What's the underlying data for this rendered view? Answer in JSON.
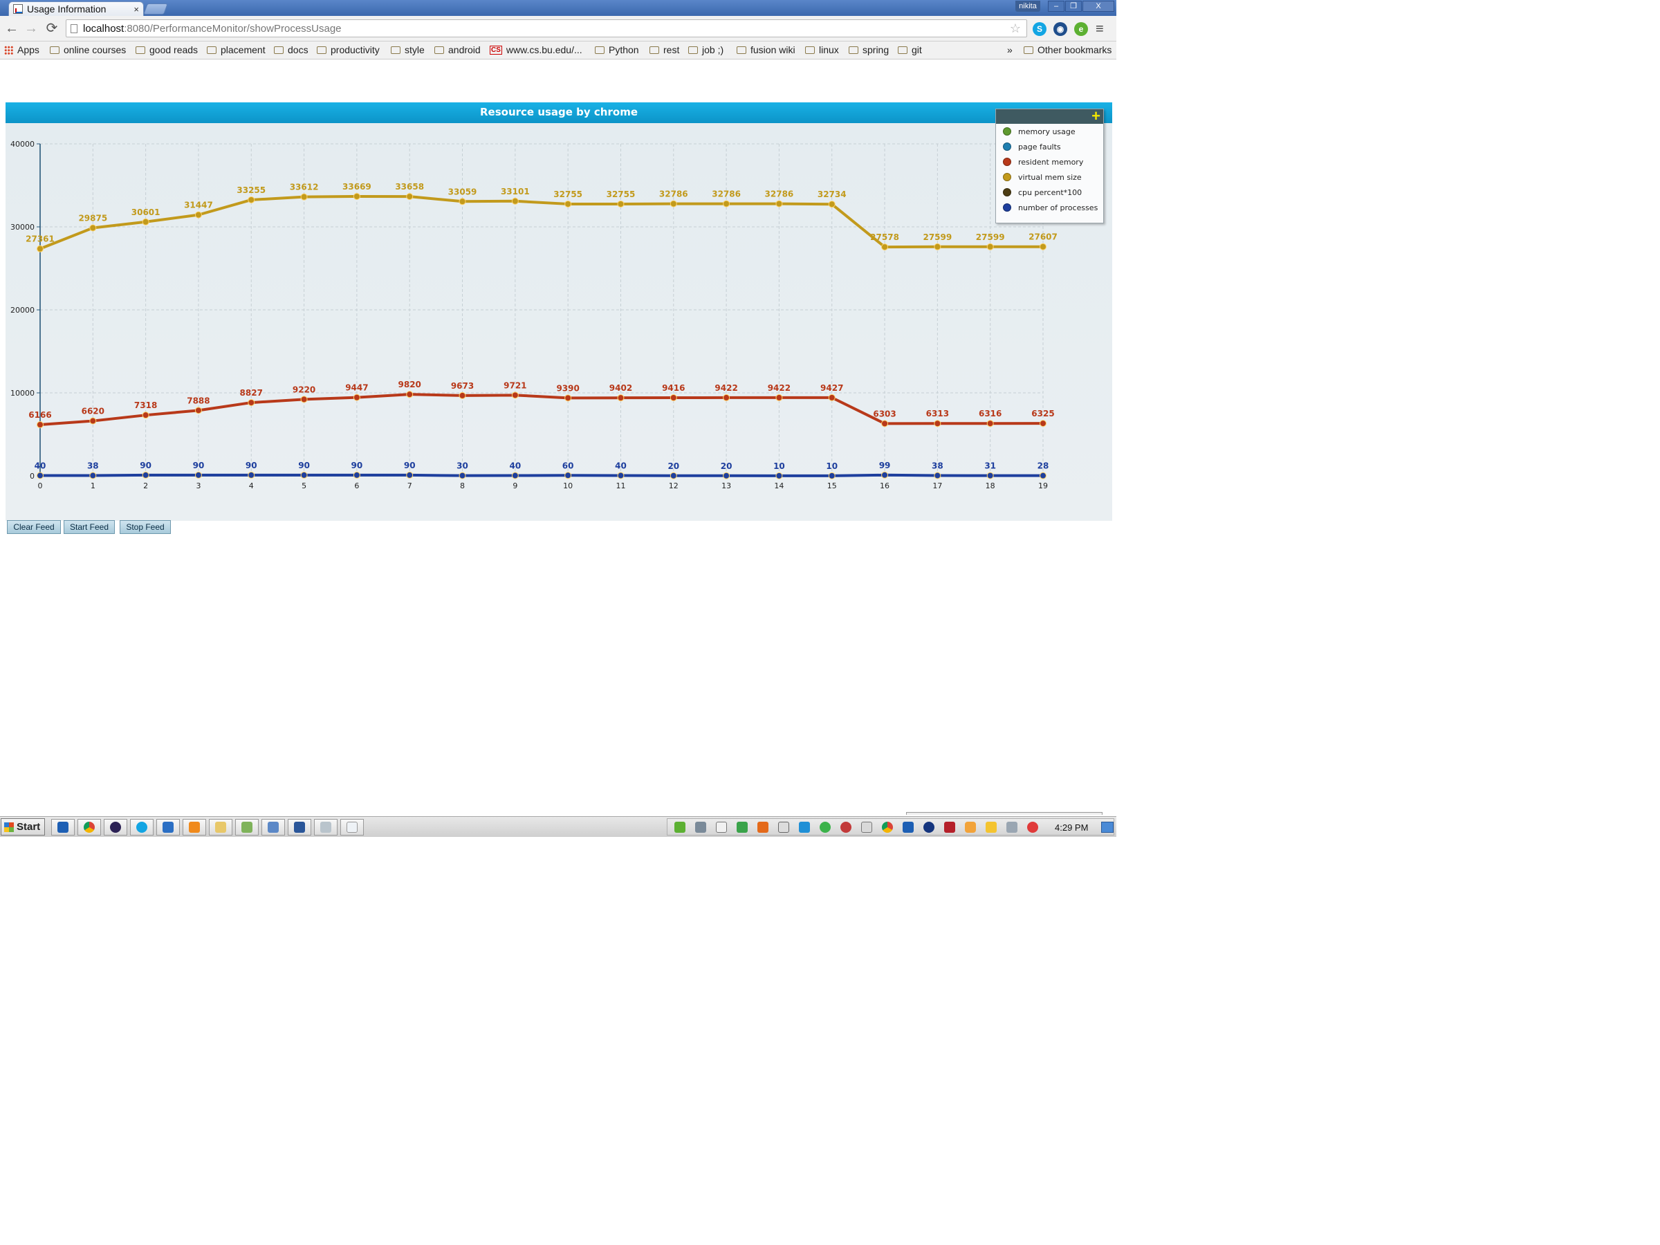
{
  "browser": {
    "tab_title": "Usage Information",
    "tab_close": "×",
    "user": "nikita",
    "win_min": "–",
    "win_max": "❐",
    "win_close": "X",
    "url_host": "localhost",
    "url_path": ":8080/PerformanceMonitor/showProcessUsage",
    "back": "←",
    "forward": "→",
    "reload": "⟳",
    "star": "☆",
    "menu": "≡"
  },
  "bookmarks": {
    "apps": "Apps",
    "items": [
      "online courses",
      "good reads",
      "placement",
      "docs",
      "productivity",
      "style",
      "android",
      "www.cs.bu.edu/...",
      "Python",
      "rest",
      "job ;)",
      "fusion wiki",
      "linux",
      "spring",
      "git"
    ],
    "overflow": "»",
    "other": "Other bookmarks"
  },
  "chart": {
    "legend_toggle": "+",
    "legend": [
      {
        "label": "memory usage",
        "color": "#5f9a2f"
      },
      {
        "label": "page faults",
        "color": "#1f7fb0"
      },
      {
        "label": "resident memory",
        "color": "#b8391a"
      },
      {
        "label": "virtual mem size",
        "color": "#c29a1c"
      },
      {
        "label": "cpu percent*100",
        "color": "#4d3d14"
      },
      {
        "label": "number of processes",
        "color": "#1e3f9e"
      }
    ]
  },
  "chart_data": {
    "type": "line",
    "title": "Resource usage by chrome",
    "x": [
      0,
      1,
      2,
      3,
      4,
      5,
      6,
      7,
      8,
      9,
      10,
      11,
      12,
      13,
      14,
      15,
      16,
      17,
      18,
      19
    ],
    "ylim": [
      0,
      40000
    ],
    "yticks": [
      0,
      10000,
      20000,
      30000,
      40000
    ],
    "grid": true,
    "legend_position": "top-right",
    "series": [
      {
        "name": "virtual mem size",
        "color": "#c29a1c",
        "values": [
          27361,
          29875,
          30601,
          31447,
          33255,
          33612,
          33669,
          33658,
          33059,
          33101,
          32755,
          32755,
          32786,
          32786,
          32786,
          32734,
          27578,
          27599,
          27599,
          27607
        ]
      },
      {
        "name": "resident memory",
        "color": "#b8391a",
        "values": [
          6166,
          6620,
          7318,
          7888,
          8827,
          9220,
          9447,
          9820,
          9673,
          9721,
          9390,
          9402,
          9416,
          9422,
          9422,
          9427,
          6303,
          6313,
          6316,
          6325
        ]
      },
      {
        "name": "number of processes",
        "color": "#1e3f9e",
        "values": [
          40,
          38,
          90,
          90,
          90,
          90,
          90,
          90,
          30,
          40,
          60,
          40,
          20,
          20,
          10,
          10,
          99,
          38,
          31,
          28
        ]
      }
    ]
  },
  "controls": {
    "clear": "Clear Feed",
    "start": "Start Feed",
    "stop": "Stop Feed"
  },
  "taskbar": {
    "start": "Start",
    "clock": "4:29 PM"
  }
}
